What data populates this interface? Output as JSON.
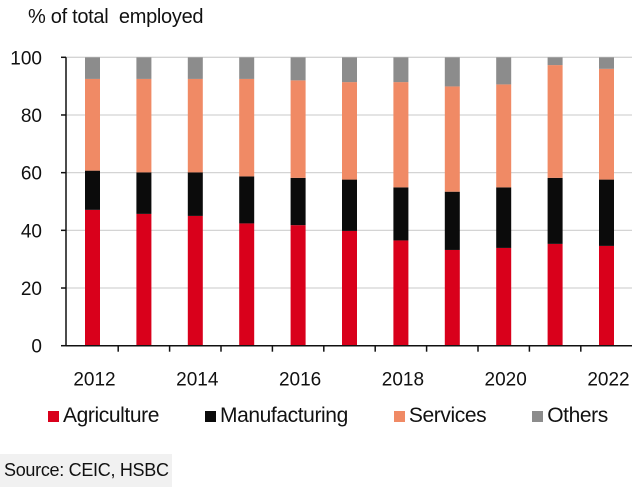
{
  "chart_data": {
    "type": "bar",
    "stacked": true,
    "title": "% of total  employed",
    "categories": [
      "2012",
      "2013",
      "2014",
      "2015",
      "2016",
      "2017",
      "2018",
      "2019",
      "2020",
      "2021",
      "2022"
    ],
    "x_tick_labels": [
      "2012",
      "2014",
      "2016",
      "2018",
      "2020",
      "2022"
    ],
    "y_tick_labels": [
      "0",
      "20",
      "40",
      "60",
      "80",
      "100"
    ],
    "ylim": [
      0,
      100
    ],
    "grid": true,
    "legend_position": "bottom",
    "series": [
      {
        "name": "Agriculture",
        "color": "#d9001b",
        "values": [
          47.1,
          45.7,
          45.0,
          42.4,
          41.8,
          39.8,
          36.5,
          33.2,
          33.9,
          35.3,
          34.6
        ]
      },
      {
        "name": "Manufacturing",
        "color": "#0b0b0b",
        "values": [
          13.6,
          14.4,
          15.1,
          16.3,
          16.4,
          17.8,
          18.4,
          20.2,
          21.0,
          22.9,
          23.0
        ]
      },
      {
        "name": "Services",
        "color": "#f08a65",
        "values": [
          31.8,
          32.4,
          32.4,
          33.8,
          33.8,
          33.8,
          36.5,
          36.5,
          35.7,
          39.1,
          38.4
        ]
      },
      {
        "name": "Others",
        "color": "#8c8c8c",
        "values": [
          7.5,
          7.5,
          7.5,
          7.5,
          8.0,
          8.6,
          8.6,
          10.1,
          9.4,
          2.7,
          4.0
        ]
      }
    ]
  },
  "source": "Source: CEIC, HSBC"
}
